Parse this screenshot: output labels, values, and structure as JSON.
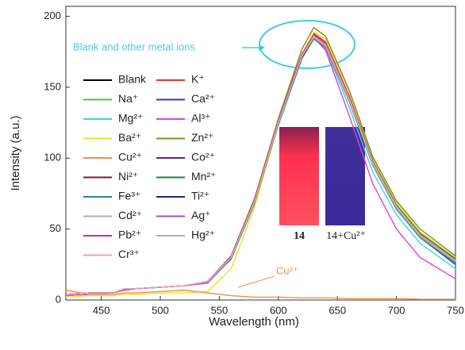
{
  "chart_data": {
    "type": "line",
    "x_label": "Wavelength (nm)",
    "y_label": "Intensity (a.u.)",
    "x": [
      420,
      440,
      460,
      470,
      480,
      500,
      520,
      540,
      560,
      580,
      600,
      620,
      630,
      640,
      660,
      680,
      700,
      720,
      750
    ],
    "xlim": [
      420,
      750
    ],
    "xticks": [
      450,
      500,
      550,
      600,
      650,
      700,
      750
    ],
    "ylim": [
      0,
      207
    ],
    "yticks": [
      0,
      50,
      100,
      150,
      200
    ],
    "annotations": [
      "Blank and other metal ions",
      "Cu²⁺",
      "14",
      "14+Cu²⁺"
    ],
    "series": [
      {
        "name": "Blank",
        "color": "#000000",
        "values": [
          4,
          5,
          5,
          8,
          8,
          9,
          10,
          13,
          30,
          70,
          125,
          172,
          186,
          180,
          142,
          97,
          66,
          46,
          28
        ]
      },
      {
        "name": "K⁺",
        "color": "#e8312a",
        "values": [
          4,
          5,
          5,
          8,
          8,
          9,
          10,
          13,
          31,
          72,
          127,
          174,
          188,
          182,
          144,
          98,
          67,
          47,
          29
        ]
      },
      {
        "name": "Na⁺",
        "color": "#4cc43c",
        "values": [
          4,
          5,
          5,
          8,
          8,
          9,
          10,
          12,
          29,
          69,
          124,
          171,
          185,
          179,
          141,
          96,
          65,
          45,
          27
        ]
      },
      {
        "name": "Ca²⁺",
        "color": "#2a3cc8",
        "values": [
          4,
          5,
          5,
          7,
          8,
          9,
          10,
          12,
          29,
          69,
          124,
          172,
          186,
          180,
          142,
          96,
          64,
          44,
          25
        ]
      },
      {
        "name": "Mg²⁺",
        "color": "#3fd6d6",
        "values": [
          4,
          5,
          5,
          8,
          8,
          9,
          10,
          12,
          29,
          68,
          123,
          170,
          184,
          177,
          136,
          90,
          60,
          40,
          22
        ]
      },
      {
        "name": "Al³⁺",
        "color": "#e040e0",
        "values": [
          3,
          4,
          5,
          7,
          8,
          9,
          10,
          12,
          30,
          71,
          126,
          172,
          185,
          176,
          130,
          82,
          50,
          30,
          15
        ]
      },
      {
        "name": "Ba²⁺",
        "color": "#f0e020",
        "values": [
          2,
          3,
          3,
          4,
          4,
          5,
          5,
          6,
          22,
          66,
          124,
          174,
          189,
          184,
          147,
          100,
          69,
          48,
          30
        ]
      },
      {
        "name": "Zn²⁺",
        "color": "#8a8a20",
        "values": [
          4,
          5,
          5,
          8,
          8,
          9,
          10,
          13,
          31,
          72,
          128,
          177,
          192,
          186,
          148,
          101,
          70,
          50,
          31
        ]
      },
      {
        "name": "Cu²⁺",
        "color": "#f0904a",
        "values": [
          7,
          4,
          4,
          5,
          5,
          6,
          7,
          5,
          3,
          2,
          2,
          1.5,
          1.5,
          1.5,
          1,
          1,
          1,
          0.5,
          0.5
        ]
      },
      {
        "name": "Co²⁺",
        "color": "#6a1a8a",
        "values": [
          4,
          5,
          5,
          8,
          8,
          9,
          10,
          13,
          30,
          70,
          125,
          172,
          185,
          179,
          141,
          96,
          65,
          45,
          27
        ]
      },
      {
        "name": "Ni²⁺",
        "color": "#8a1a1a",
        "values": [
          4,
          5,
          5,
          8,
          8,
          9,
          10,
          13,
          30,
          71,
          126,
          173,
          187,
          181,
          143,
          97,
          66,
          46,
          28
        ]
      },
      {
        "name": "Mn²⁺",
        "color": "#1a8a3a",
        "values": [
          4,
          5,
          5,
          8,
          8,
          9,
          10,
          13,
          30,
          70,
          125,
          172,
          186,
          180,
          143,
          98,
          67,
          47,
          29
        ]
      },
      {
        "name": "Fe³⁺",
        "color": "#2a8a8a",
        "values": [
          4,
          5,
          5,
          8,
          8,
          9,
          10,
          13,
          29,
          69,
          124,
          171,
          184,
          178,
          140,
          95,
          64,
          44,
          26
        ]
      },
      {
        "name": "Ti²⁺",
        "color": "#1a2a7a",
        "values": [
          4,
          5,
          5,
          8,
          8,
          9,
          10,
          13,
          30,
          70,
          125,
          171,
          185,
          179,
          141,
          96,
          65,
          45,
          27
        ]
      },
      {
        "name": "Cd²⁺",
        "color": "#c8a890",
        "values": [
          4,
          5,
          5,
          8,
          8,
          9,
          10,
          13,
          30,
          70,
          126,
          173,
          187,
          181,
          143,
          97,
          66,
          46,
          28
        ]
      },
      {
        "name": "Ag⁺",
        "color": "#9a50e0",
        "values": [
          4,
          5,
          5,
          8,
          8,
          9,
          10,
          13,
          30,
          70,
          125,
          172,
          186,
          180,
          142,
          96,
          65,
          45,
          27
        ]
      },
      {
        "name": "Pb²⁺",
        "color": "#c8308a",
        "values": [
          4,
          5,
          5,
          8,
          8,
          9,
          10,
          13,
          31,
          71,
          126,
          173,
          187,
          181,
          143,
          97,
          66,
          46,
          28
        ]
      },
      {
        "name": "Hg²⁺",
        "color": "#b0b0b0",
        "values": [
          4,
          5,
          5,
          8,
          8,
          9,
          10,
          13,
          30,
          70,
          125,
          172,
          186,
          180,
          142,
          97,
          66,
          46,
          28
        ]
      },
      {
        "name": "Cr³⁺",
        "color": "#f0a0a8",
        "values": [
          4,
          5,
          5,
          8,
          8,
          9,
          10,
          13,
          30,
          70,
          125,
          172,
          185,
          179,
          141,
          96,
          65,
          45,
          27
        ]
      }
    ]
  }
}
